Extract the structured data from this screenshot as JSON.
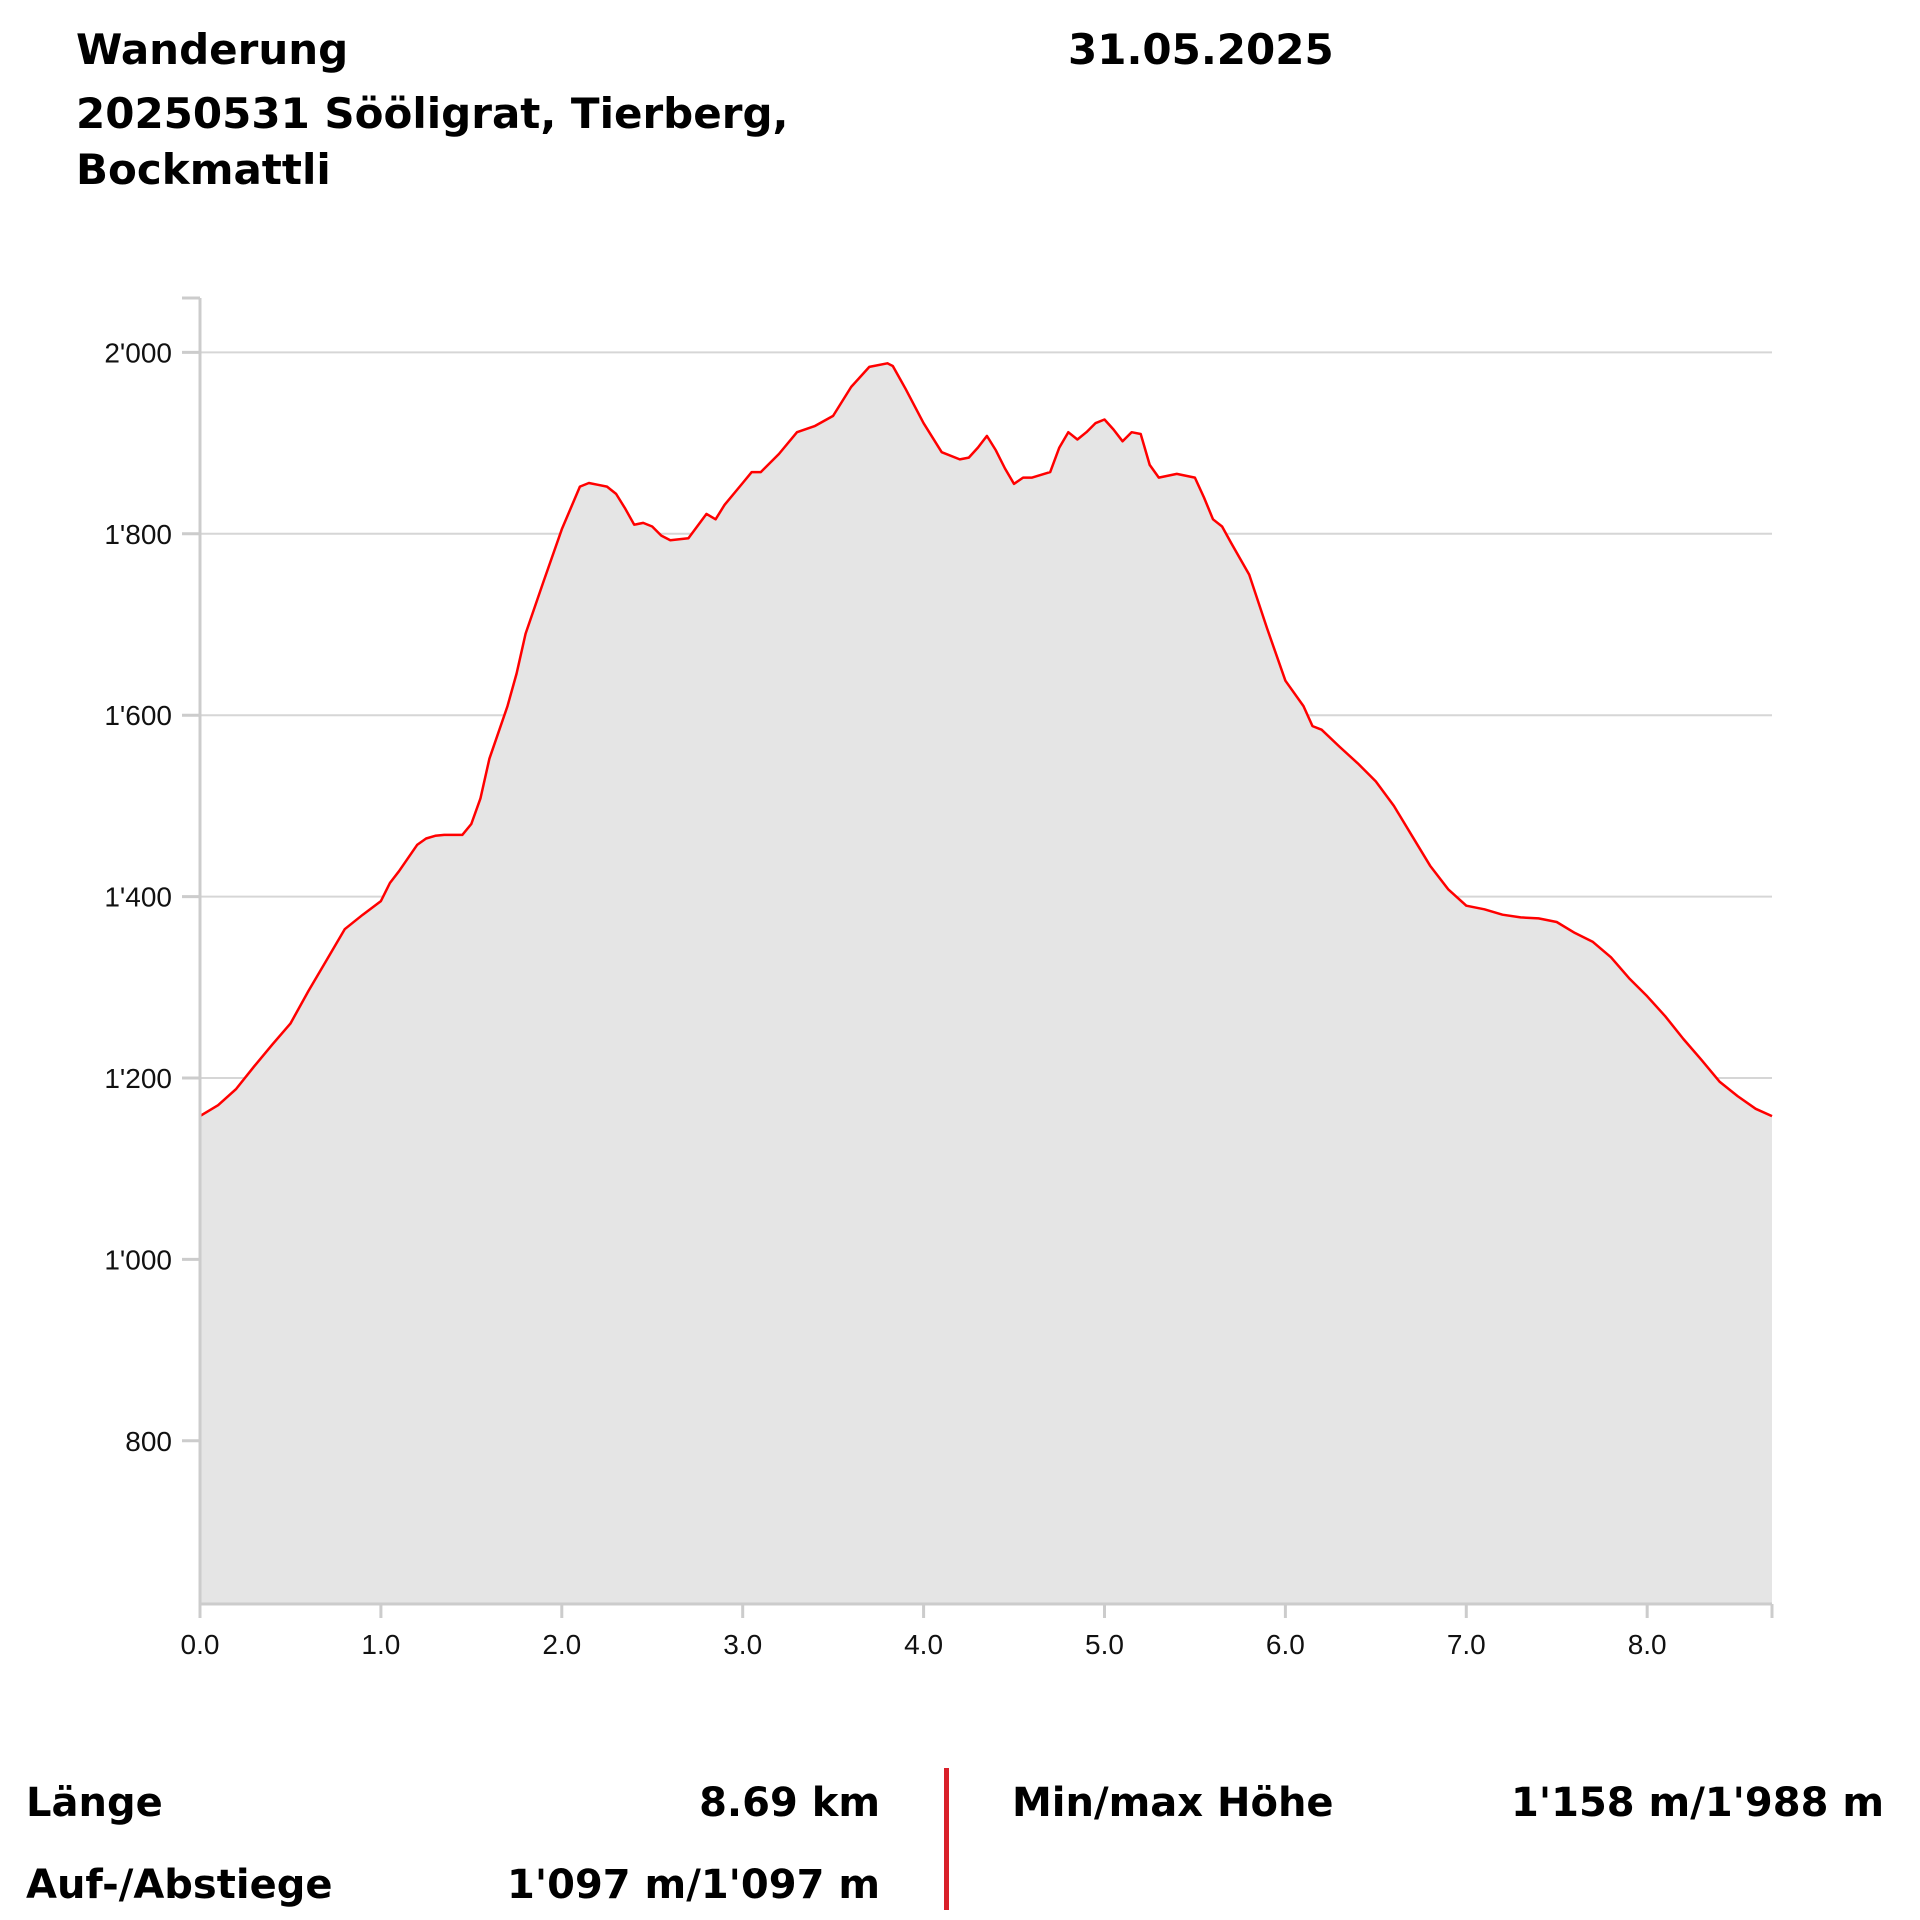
{
  "header": {
    "activity": "Wanderung",
    "title": "20250531 Sööligrat, Tierberg, Bockmattli",
    "date": "31.05.2025"
  },
  "stats": {
    "length_label": "Länge",
    "length_value": "8.69 km",
    "ascent_label": "Auf-/Abstiege",
    "ascent_value": "1'097 m/1'097 m",
    "minmax_label": "Min/max Höhe",
    "minmax_value": "1'158 m/1'988 m"
  },
  "colors": {
    "line": "#ff0000",
    "fill": "#e5e5e5",
    "grid": "#d6d6d6",
    "axis": "#cccccc",
    "divider": "#d9202a"
  },
  "chart_data": {
    "type": "area",
    "xlim": [
      0,
      8.69
    ],
    "ylim": [
      620,
      2060
    ],
    "x_ticks": [
      0,
      1,
      2,
      3,
      4,
      5,
      6,
      7,
      8
    ],
    "x_tick_labels": [
      "0.0",
      "1.0",
      "2.0",
      "3.0",
      "4.0",
      "5.0",
      "6.0",
      "7.0",
      "8.0"
    ],
    "y_ticks": [
      800,
      1000,
      1200,
      1400,
      1600,
      1800,
      2000
    ],
    "y_tick_labels": [
      "800",
      "1'000",
      "1'200",
      "1'400",
      "1'600",
      "1'800",
      "2'000"
    ],
    "grid": "horizontal",
    "x": [
      0.0,
      0.1,
      0.2,
      0.3,
      0.4,
      0.5,
      0.6,
      0.7,
      0.8,
      0.9,
      1.0,
      1.05,
      1.1,
      1.2,
      1.25,
      1.3,
      1.35,
      1.45,
      1.5,
      1.55,
      1.6,
      1.7,
      1.75,
      1.8,
      1.9,
      2.0,
      2.1,
      2.15,
      2.2,
      2.25,
      2.3,
      2.35,
      2.4,
      2.45,
      2.5,
      2.55,
      2.6,
      2.7,
      2.8,
      2.85,
      2.9,
      3.0,
      3.05,
      3.1,
      3.2,
      3.3,
      3.4,
      3.5,
      3.6,
      3.7,
      3.8,
      3.83,
      3.9,
      4.0,
      4.1,
      4.2,
      4.25,
      4.3,
      4.35,
      4.4,
      4.45,
      4.5,
      4.55,
      4.6,
      4.7,
      4.75,
      4.8,
      4.85,
      4.9,
      4.95,
      5.0,
      5.05,
      5.1,
      5.15,
      5.2,
      5.25,
      5.3,
      5.4,
      5.5,
      5.55,
      5.6,
      5.65,
      5.7,
      5.8,
      5.9,
      6.0,
      6.1,
      6.15,
      6.2,
      6.3,
      6.4,
      6.5,
      6.6,
      6.7,
      6.8,
      6.9,
      7.0,
      7.1,
      7.2,
      7.3,
      7.4,
      7.5,
      7.6,
      7.7,
      7.8,
      7.9,
      8.0,
      8.1,
      8.2,
      8.3,
      8.4,
      8.5,
      8.6,
      8.69
    ],
    "y": [
      1158,
      1170,
      1188,
      1213,
      1237,
      1260,
      1296,
      1330,
      1364,
      1380,
      1395,
      1415,
      1428,
      1457,
      1464,
      1467,
      1468,
      1468,
      1480,
      1508,
      1552,
      1610,
      1646,
      1690,
      1748,
      1805,
      1852,
      1856,
      1854,
      1852,
      1844,
      1828,
      1810,
      1812,
      1808,
      1798,
      1793,
      1795,
      1822,
      1816,
      1832,
      1856,
      1868,
      1868,
      1888,
      1912,
      1919,
      1930,
      1962,
      1984,
      1988,
      1985,
      1960,
      1922,
      1890,
      1882,
      1884,
      1895,
      1908,
      1892,
      1872,
      1855,
      1862,
      1862,
      1868,
      1895,
      1912,
      1904,
      1912,
      1922,
      1926,
      1915,
      1902,
      1912,
      1910,
      1876,
      1862,
      1866,
      1862,
      1840,
      1816,
      1808,
      1790,
      1755,
      1695,
      1638,
      1610,
      1588,
      1584,
      1565,
      1547,
      1527,
      1500,
      1467,
      1434,
      1408,
      1390,
      1386,
      1380,
      1377,
      1376,
      1372,
      1360,
      1350,
      1333,
      1310,
      1290,
      1268,
      1243,
      1220,
      1196,
      1180,
      1166,
      1158
    ]
  }
}
